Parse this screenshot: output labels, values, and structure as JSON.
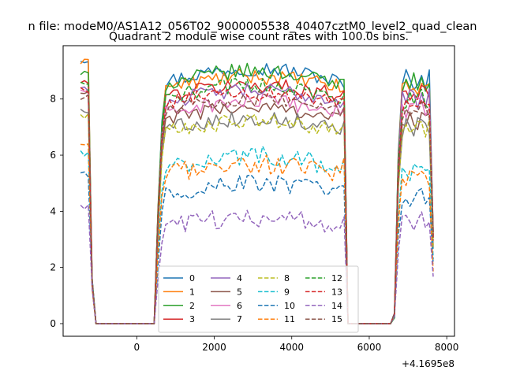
{
  "figure": {
    "suptitle": "n file: modeM0/AS1A12_056T02_9000005538_40407cztM0_level2_quad_clean",
    "title": "Quadrant 2 module wise count rates with 100.0s bins.",
    "offset_text": "+4.1695e8"
  },
  "chart_data": {
    "type": "line",
    "title": "Quadrant 2 module wise count rates with 100.0s bins.",
    "xlabel": "",
    "ylabel": "",
    "xlim": [
      -1900,
      8200
    ],
    "ylim": [
      -0.45,
      9.9
    ],
    "x_offset": 416950000,
    "xticks": [
      0,
      2000,
      4000,
      6000,
      8000
    ],
    "yticks": [
      0,
      2,
      4,
      6,
      8
    ],
    "grid": false,
    "legend_position": "lower center",
    "legend_columns": 4,
    "bin_seconds": 100,
    "x": [
      -1450,
      -1350,
      -1250,
      -1150,
      450,
      550,
      650,
      750,
      850,
      950,
      1050,
      1150,
      1250,
      1350,
      1450,
      1550,
      1650,
      1750,
      1850,
      1950,
      2050,
      2150,
      2250,
      2350,
      2450,
      2550,
      2650,
      2750,
      2850,
      2950,
      3050,
      3150,
      3250,
      3350,
      3450,
      3550,
      3650,
      3750,
      3850,
      3950,
      4050,
      4150,
      4250,
      4350,
      4450,
      4550,
      4650,
      4750,
      4850,
      4950,
      5050,
      5150,
      5250,
      5350,
      6650,
      6750,
      6850,
      6950,
      7050,
      7150,
      7250,
      7350,
      7450,
      7550,
      7650
    ],
    "series": [
      {
        "name": "0",
        "color": "#1f77b4",
        "dash": "solid",
        "level": 8.6,
        "start": 9.4,
        "end": 8.4,
        "seg3": 8.7,
        "hump": 0.5
      },
      {
        "name": "1",
        "color": "#ff7f0e",
        "dash": "solid",
        "level": 8.4,
        "start": 9.3,
        "end": 8.3,
        "seg3": 8.4,
        "hump": 0.4
      },
      {
        "name": "2",
        "color": "#2ca02c",
        "dash": "solid",
        "level": 8.5,
        "start": 8.9,
        "end": 8.7,
        "seg3": 8.6,
        "hump": 0.5
      },
      {
        "name": "3",
        "color": "#d62728",
        "dash": "solid",
        "level": 8.1,
        "start": 8.6,
        "end": 8.3,
        "seg3": 8.3,
        "hump": 0.4
      },
      {
        "name": "4",
        "color": "#9467bd",
        "dash": "solid",
        "level": 7.9,
        "start": 8.4,
        "end": 7.9,
        "seg3": 8.0,
        "hump": 0.4
      },
      {
        "name": "5",
        "color": "#8c564b",
        "dash": "solid",
        "level": 7.3,
        "start": 8.2,
        "end": 7.6,
        "seg3": 7.3,
        "hump": 0.4
      },
      {
        "name": "6",
        "color": "#e377c2",
        "dash": "solid",
        "level": 7.5,
        "start": 8.3,
        "end": 7.7,
        "seg3": 7.7,
        "hump": 0.4
      },
      {
        "name": "7",
        "color": "#7f7f7f",
        "dash": "solid",
        "level": 7.0,
        "start": 7.6,
        "end": 7.2,
        "seg3": 7.0,
        "hump": 0.3
      },
      {
        "name": "8",
        "color": "#bcbd22",
        "dash": "dashed",
        "level": 6.8,
        "start": 7.4,
        "end": 7.1,
        "seg3": 6.9,
        "hump": 0.4
      },
      {
        "name": "9",
        "color": "#17becf",
        "dash": "dashed",
        "level": 5.5,
        "start": 6.1,
        "end": 5.9,
        "seg3": 5.3,
        "hump": 0.5
      },
      {
        "name": "10",
        "color": "#1f77b4",
        "dash": "dashed",
        "level": 4.6,
        "start": 5.3,
        "end": 4.9,
        "seg3": 4.5,
        "hump": 0.4
      },
      {
        "name": "11",
        "color": "#ff7f0e",
        "dash": "dashed",
        "level": 5.3,
        "start": 6.3,
        "end": 5.9,
        "seg3": 5.1,
        "hump": 0.4
      },
      {
        "name": "12",
        "color": "#2ca02c",
        "dash": "dashed",
        "level": 8.0,
        "start": 8.5,
        "end": 8.2,
        "seg3": 8.0,
        "hump": 0.5
      },
      {
        "name": "13",
        "color": "#d62728",
        "dash": "dashed",
        "level": 7.8,
        "start": 8.3,
        "end": 8.0,
        "seg3": 7.6,
        "hump": 0.4
      },
      {
        "name": "14",
        "color": "#9467bd",
        "dash": "dashed",
        "level": 3.4,
        "start": 4.1,
        "end": 3.8,
        "seg3": 3.6,
        "hump": 0.4
      },
      {
        "name": "15",
        "color": "#8c564b",
        "dash": "dashed",
        "level": 7.6,
        "start": 8.1,
        "end": 7.7,
        "seg3": 7.5,
        "hump": 0.4
      }
    ]
  }
}
